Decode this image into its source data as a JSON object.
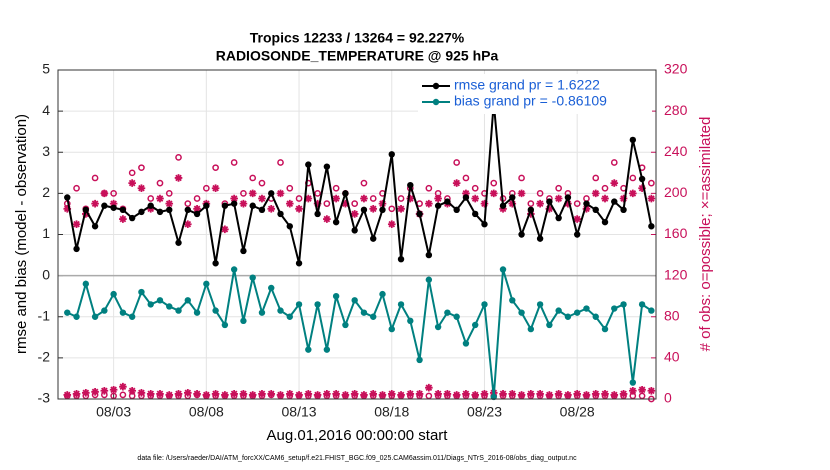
{
  "chart_data": {
    "type": "line",
    "title": "Tropics 12233 / 13264 = 92.227%",
    "subtitle": "RADIOSONDE_TEMPERATURE @ 925 hPa",
    "x_label": "Aug.01,2016 00:00:00 start",
    "y_label": "rmse and bias (model - observation)",
    "y2_label": "# of obs: o=possible; ×=assimilated",
    "footnote": "data file: /Users/raeder/DAI/ATM_forcXX/CAM6_setup/f.e21.FHIST_BGC.f09_025.CAM6assim.011/Diags_NTrS_2016-08/obs_diag_output.nc",
    "xlim": [
      -1,
      31.25
    ],
    "xticks": [
      {
        "value": 2,
        "label": "08/03"
      },
      {
        "value": 7,
        "label": "08/08"
      },
      {
        "value": 12,
        "label": "08/13"
      },
      {
        "value": 17,
        "label": "08/18"
      },
      {
        "value": 22,
        "label": "08/23"
      },
      {
        "value": 27,
        "label": "08/28"
      }
    ],
    "ylim": [
      -3,
      5
    ],
    "yticks": [
      -3,
      -2,
      -1,
      0,
      1,
      2,
      3,
      4,
      5
    ],
    "y2lim": [
      0,
      320
    ],
    "y2ticks": [
      0,
      40,
      80,
      120,
      160,
      200,
      240,
      280,
      320
    ],
    "grid": true,
    "legend": "northeast",
    "x": [
      -0.5,
      0,
      0.5,
      1,
      1.5,
      2,
      2.5,
      3,
      3.5,
      4,
      4.5,
      5,
      5.5,
      6,
      6.5,
      7,
      7.5,
      8,
      8.5,
      9,
      9.5,
      10,
      10.5,
      11,
      11.5,
      12,
      12.5,
      13,
      13.5,
      14,
      14.5,
      15,
      15.5,
      16,
      16.5,
      17,
      17.5,
      18,
      18.5,
      19,
      19.5,
      20,
      20.5,
      21,
      21.5,
      22,
      22.5,
      23,
      23.5,
      24,
      24.5,
      25,
      25.5,
      26,
      26.5,
      27,
      27.5,
      28,
      28.5,
      29,
      29.5,
      30,
      30.5,
      31
    ],
    "series": [
      {
        "name": "rmse grand pr = 1.6222",
        "color": "#000000",
        "values": [
          1.9,
          0.65,
          1.6,
          1.2,
          1.7,
          1.65,
          1.6,
          1.4,
          1.55,
          1.7,
          1.55,
          1.6,
          0.8,
          1.6,
          1.5,
          1.7,
          0.3,
          1.7,
          1.75,
          0.6,
          1.7,
          1.6,
          2.0,
          1.5,
          1.2,
          0.3,
          2.7,
          1.5,
          2.65,
          1.3,
          2.0,
          1.1,
          1.6,
          0.9,
          1.6,
          2.95,
          0.4,
          2.2,
          1.5,
          0.5,
          1.7,
          1.8,
          1.6,
          1.9,
          1.5,
          1.25,
          4.2,
          1.7,
          1.9,
          1.0,
          1.6,
          0.9,
          1.8,
          1.4,
          1.9,
          1.0,
          1.75,
          1.6,
          1.3,
          1.8,
          1.6,
          3.3,
          2.35,
          1.2
        ]
      },
      {
        "name": "bias grand pr = -0.86109",
        "color": "#008080",
        "values": [
          -0.9,
          -1.0,
          -0.2,
          -1.0,
          -0.85,
          -0.45,
          -0.9,
          -1.0,
          -0.4,
          -0.7,
          -0.6,
          -0.75,
          -0.85,
          -0.6,
          -0.9,
          -0.2,
          -0.85,
          -1.2,
          0.15,
          -1.1,
          -0.05,
          -0.9,
          -0.3,
          -0.85,
          -1.0,
          -0.7,
          -1.8,
          -0.7,
          -1.8,
          -0.5,
          -1.2,
          -0.6,
          -0.9,
          -1.0,
          -0.45,
          -1.3,
          -0.7,
          -1.1,
          -2.05,
          -0.1,
          -1.25,
          -0.9,
          -1.0,
          -1.65,
          -1.2,
          -0.7,
          -2.95,
          0.15,
          -0.6,
          -0.9,
          -1.3,
          -0.7,
          -1.2,
          -0.85,
          -1.0,
          -0.9,
          -0.8,
          -1.0,
          -1.3,
          -0.8,
          -0.7,
          -2.6,
          -0.7,
          -0.85
        ]
      }
    ],
    "count_color": "#c8105a",
    "counts": [
      {
        "marker": "circle",
        "axis": "y2",
        "values": [
          190,
          205,
          185,
          215,
          200,
          200,
          185,
          220,
          225,
          195,
          210,
          200,
          235,
          190,
          195,
          205,
          225,
          190,
          230,
          200,
          215,
          210,
          195,
          230,
          205,
          195,
          210,
          200,
          190,
          205,
          200,
          190,
          210,
          195,
          200,
          185,
          195,
          205,
          190,
          205,
          200,
          195,
          230,
          215,
          205,
          200,
          210,
          195,
          200,
          215,
          190,
          200,
          195,
          205,
          200,
          190,
          195,
          215,
          205,
          230,
          205,
          215,
          225,
          210
        ]
      },
      {
        "marker": "asterisk",
        "axis": "y2",
        "values": [
          185,
          170,
          180,
          190,
          200,
          190,
          175,
          210,
          205,
          185,
          195,
          190,
          215,
          170,
          185,
          190,
          205,
          165,
          195,
          190,
          200,
          195,
          185,
          200,
          190,
          185,
          195,
          190,
          175,
          195,
          190,
          180,
          195,
          185,
          190,
          170,
          185,
          195,
          180,
          190,
          195,
          190,
          210,
          200,
          195,
          190,
          200,
          185,
          190,
          200,
          180,
          190,
          185,
          195,
          190,
          175,
          185,
          200,
          195,
          210,
          195,
          200,
          205,
          195
        ]
      },
      {
        "marker": "circle",
        "axis": "y2",
        "values": [
          3,
          3,
          3,
          4,
          4,
          3,
          4,
          3,
          3,
          3,
          3,
          3,
          3,
          3,
          4,
          3,
          3,
          3,
          3,
          3,
          3,
          3,
          4,
          3,
          3,
          3,
          3,
          3,
          3,
          3,
          3,
          3,
          3,
          3,
          3,
          3,
          3,
          3,
          3,
          3,
          3,
          3,
          3,
          3,
          3,
          3,
          3,
          3,
          3,
          3,
          3,
          3,
          3,
          3,
          3,
          3,
          3,
          3,
          3,
          3,
          3,
          3,
          3,
          0
        ]
      },
      {
        "marker": "asterisk",
        "axis": "y2",
        "values": [
          4,
          5,
          6,
          7,
          8,
          9,
          12,
          8,
          6,
          5,
          5,
          4,
          5,
          6,
          5,
          4,
          5,
          4,
          5,
          5,
          4,
          5,
          5,
          4,
          5,
          4,
          5,
          4,
          5,
          5,
          4,
          5,
          4,
          5,
          4,
          5,
          4,
          5,
          5,
          11,
          5,
          5,
          4,
          5,
          4,
          5,
          6,
          5,
          5,
          4,
          5,
          5,
          4,
          5,
          4,
          5,
          4,
          5,
          5,
          4,
          5,
          8,
          9,
          8
        ]
      }
    ]
  }
}
